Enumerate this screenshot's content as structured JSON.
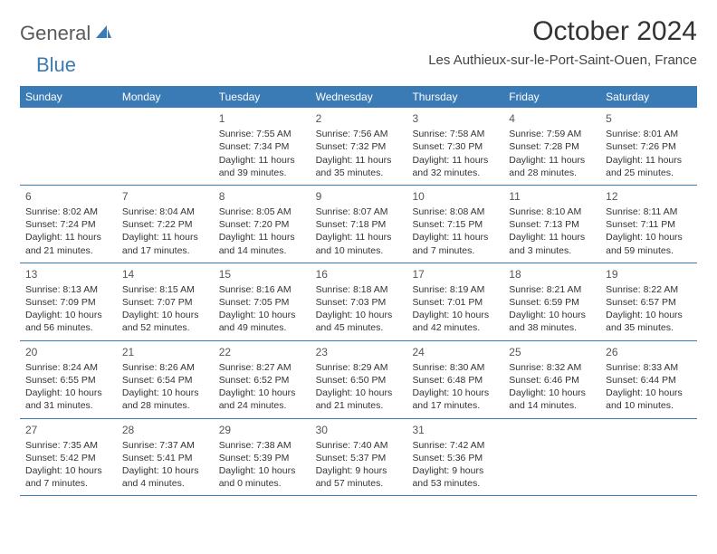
{
  "logo": {
    "text_general": "General",
    "text_blue": "Blue",
    "shape_color": "#3a7ab5"
  },
  "title": "October 2024",
  "location": "Les Authieux-sur-le-Port-Saint-Ouen, France",
  "colors": {
    "header_bg": "#3a7ab5",
    "header_text": "#ffffff",
    "row_border": "#3a7ab5",
    "body_text": "#333333",
    "background": "#ffffff"
  },
  "day_names": [
    "Sunday",
    "Monday",
    "Tuesday",
    "Wednesday",
    "Thursday",
    "Friday",
    "Saturday"
  ],
  "weeks": [
    [
      null,
      null,
      {
        "n": "1",
        "sr": "Sunrise: 7:55 AM",
        "ss": "Sunset: 7:34 PM",
        "dl": "Daylight: 11 hours and 39 minutes."
      },
      {
        "n": "2",
        "sr": "Sunrise: 7:56 AM",
        "ss": "Sunset: 7:32 PM",
        "dl": "Daylight: 11 hours and 35 minutes."
      },
      {
        "n": "3",
        "sr": "Sunrise: 7:58 AM",
        "ss": "Sunset: 7:30 PM",
        "dl": "Daylight: 11 hours and 32 minutes."
      },
      {
        "n": "4",
        "sr": "Sunrise: 7:59 AM",
        "ss": "Sunset: 7:28 PM",
        "dl": "Daylight: 11 hours and 28 minutes."
      },
      {
        "n": "5",
        "sr": "Sunrise: 8:01 AM",
        "ss": "Sunset: 7:26 PM",
        "dl": "Daylight: 11 hours and 25 minutes."
      }
    ],
    [
      {
        "n": "6",
        "sr": "Sunrise: 8:02 AM",
        "ss": "Sunset: 7:24 PM",
        "dl": "Daylight: 11 hours and 21 minutes."
      },
      {
        "n": "7",
        "sr": "Sunrise: 8:04 AM",
        "ss": "Sunset: 7:22 PM",
        "dl": "Daylight: 11 hours and 17 minutes."
      },
      {
        "n": "8",
        "sr": "Sunrise: 8:05 AM",
        "ss": "Sunset: 7:20 PM",
        "dl": "Daylight: 11 hours and 14 minutes."
      },
      {
        "n": "9",
        "sr": "Sunrise: 8:07 AM",
        "ss": "Sunset: 7:18 PM",
        "dl": "Daylight: 11 hours and 10 minutes."
      },
      {
        "n": "10",
        "sr": "Sunrise: 8:08 AM",
        "ss": "Sunset: 7:15 PM",
        "dl": "Daylight: 11 hours and 7 minutes."
      },
      {
        "n": "11",
        "sr": "Sunrise: 8:10 AM",
        "ss": "Sunset: 7:13 PM",
        "dl": "Daylight: 11 hours and 3 minutes."
      },
      {
        "n": "12",
        "sr": "Sunrise: 8:11 AM",
        "ss": "Sunset: 7:11 PM",
        "dl": "Daylight: 10 hours and 59 minutes."
      }
    ],
    [
      {
        "n": "13",
        "sr": "Sunrise: 8:13 AM",
        "ss": "Sunset: 7:09 PM",
        "dl": "Daylight: 10 hours and 56 minutes."
      },
      {
        "n": "14",
        "sr": "Sunrise: 8:15 AM",
        "ss": "Sunset: 7:07 PM",
        "dl": "Daylight: 10 hours and 52 minutes."
      },
      {
        "n": "15",
        "sr": "Sunrise: 8:16 AM",
        "ss": "Sunset: 7:05 PM",
        "dl": "Daylight: 10 hours and 49 minutes."
      },
      {
        "n": "16",
        "sr": "Sunrise: 8:18 AM",
        "ss": "Sunset: 7:03 PM",
        "dl": "Daylight: 10 hours and 45 minutes."
      },
      {
        "n": "17",
        "sr": "Sunrise: 8:19 AM",
        "ss": "Sunset: 7:01 PM",
        "dl": "Daylight: 10 hours and 42 minutes."
      },
      {
        "n": "18",
        "sr": "Sunrise: 8:21 AM",
        "ss": "Sunset: 6:59 PM",
        "dl": "Daylight: 10 hours and 38 minutes."
      },
      {
        "n": "19",
        "sr": "Sunrise: 8:22 AM",
        "ss": "Sunset: 6:57 PM",
        "dl": "Daylight: 10 hours and 35 minutes."
      }
    ],
    [
      {
        "n": "20",
        "sr": "Sunrise: 8:24 AM",
        "ss": "Sunset: 6:55 PM",
        "dl": "Daylight: 10 hours and 31 minutes."
      },
      {
        "n": "21",
        "sr": "Sunrise: 8:26 AM",
        "ss": "Sunset: 6:54 PM",
        "dl": "Daylight: 10 hours and 28 minutes."
      },
      {
        "n": "22",
        "sr": "Sunrise: 8:27 AM",
        "ss": "Sunset: 6:52 PM",
        "dl": "Daylight: 10 hours and 24 minutes."
      },
      {
        "n": "23",
        "sr": "Sunrise: 8:29 AM",
        "ss": "Sunset: 6:50 PM",
        "dl": "Daylight: 10 hours and 21 minutes."
      },
      {
        "n": "24",
        "sr": "Sunrise: 8:30 AM",
        "ss": "Sunset: 6:48 PM",
        "dl": "Daylight: 10 hours and 17 minutes."
      },
      {
        "n": "25",
        "sr": "Sunrise: 8:32 AM",
        "ss": "Sunset: 6:46 PM",
        "dl": "Daylight: 10 hours and 14 minutes."
      },
      {
        "n": "26",
        "sr": "Sunrise: 8:33 AM",
        "ss": "Sunset: 6:44 PM",
        "dl": "Daylight: 10 hours and 10 minutes."
      }
    ],
    [
      {
        "n": "27",
        "sr": "Sunrise: 7:35 AM",
        "ss": "Sunset: 5:42 PM",
        "dl": "Daylight: 10 hours and 7 minutes."
      },
      {
        "n": "28",
        "sr": "Sunrise: 7:37 AM",
        "ss": "Sunset: 5:41 PM",
        "dl": "Daylight: 10 hours and 4 minutes."
      },
      {
        "n": "29",
        "sr": "Sunrise: 7:38 AM",
        "ss": "Sunset: 5:39 PM",
        "dl": "Daylight: 10 hours and 0 minutes."
      },
      {
        "n": "30",
        "sr": "Sunrise: 7:40 AM",
        "ss": "Sunset: 5:37 PM",
        "dl": "Daylight: 9 hours and 57 minutes."
      },
      {
        "n": "31",
        "sr": "Sunrise: 7:42 AM",
        "ss": "Sunset: 5:36 PM",
        "dl": "Daylight: 9 hours and 53 minutes."
      },
      null,
      null
    ]
  ]
}
